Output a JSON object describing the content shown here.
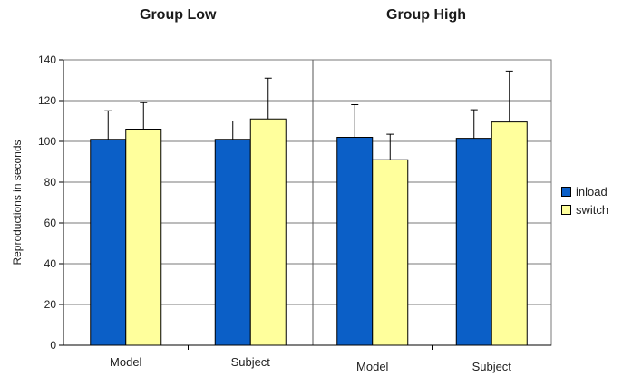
{
  "chart_data": {
    "type": "bar",
    "ylabel": "Reproductions in seconds",
    "ylim": [
      0,
      140
    ],
    "yticks": [
      0,
      20,
      40,
      60,
      80,
      100,
      120,
      140
    ],
    "grid": true,
    "legend_position": "right",
    "series": [
      {
        "name": "inload",
        "color": "#0b5fc7"
      },
      {
        "name": "switch",
        "color": "#ffff9c"
      }
    ],
    "groups": [
      {
        "title": "Group Low",
        "categories": [
          "Model",
          "Subject"
        ],
        "values": {
          "inload": [
            101,
            101
          ],
          "switch": [
            106,
            111
          ]
        },
        "error": {
          "inload": [
            14,
            9
          ],
          "switch": [
            13,
            20
          ]
        }
      },
      {
        "title": "Group High",
        "categories": [
          "Model",
          "Subject"
        ],
        "values": {
          "inload": [
            102,
            101.5
          ],
          "switch": [
            91,
            109.5
          ]
        },
        "error": {
          "inload": [
            16,
            14
          ],
          "switch": [
            12.5,
            25
          ]
        }
      }
    ]
  }
}
